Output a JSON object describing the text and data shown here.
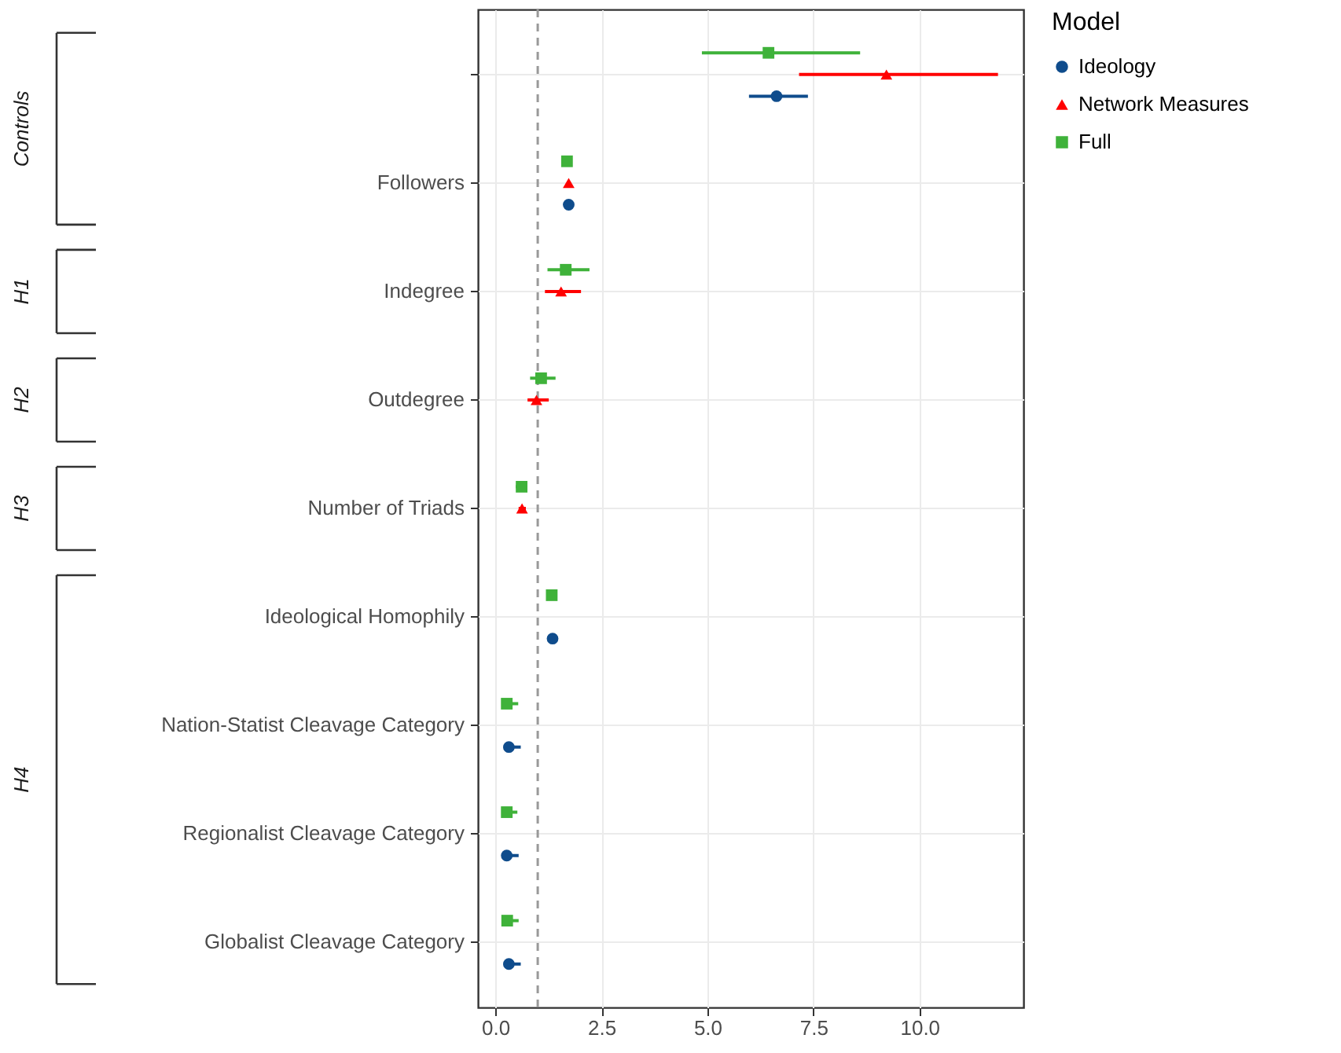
{
  "chart_data": {
    "type": "scatter",
    "orientation": "horizontal",
    "categories": [
      null,
      "Followers",
      "Indegree",
      "Outdegree",
      "Number of Triads",
      "Ideological Homophily",
      "Nation-Statist Cleavage Category",
      "Regionalist Cleavage Category",
      "Globalist Cleavage Category"
    ],
    "series": [
      {
        "name": "Ideology",
        "color": "#0f4c8c",
        "marker": "circle",
        "values": [
          6.63,
          1.73,
          null,
          null,
          null,
          1.35,
          0.32,
          0.27,
          0.32
        ],
        "errors": [
          [
            5.98,
            7.37
          ],
          null,
          null,
          null,
          null,
          null,
          [
            0.2,
            0.6
          ],
          [
            0.16,
            0.55
          ],
          [
            0.2,
            0.6
          ]
        ]
      },
      {
        "name": "Network Measures",
        "color": "#ff0000",
        "marker": "triangle",
        "values": [
          9.22,
          1.73,
          1.55,
          0.97,
          0.63,
          null,
          null,
          null,
          null
        ],
        "errors": [
          [
            7.16,
            11.85
          ],
          null,
          [
            1.17,
            2.02
          ],
          [
            0.76,
            1.26
          ],
          [
            0.55,
            0.72
          ],
          null,
          null,
          null,
          null
        ]
      },
      {
        "name": "Full",
        "color": "#3fb23a",
        "marker": "square",
        "values": [
          6.44,
          1.69,
          1.66,
          1.08,
          0.62,
          1.33,
          0.27,
          0.27,
          0.28
        ],
        "errors": [
          [
            4.87,
            8.6
          ],
          null,
          [
            1.23,
            2.22
          ],
          [
            0.82,
            1.42
          ],
          [
            0.48,
            0.73
          ],
          null,
          [
            0.16,
            0.54
          ],
          [
            0.16,
            0.52
          ],
          [
            0.16,
            0.55
          ]
        ]
      }
    ],
    "xlim": [
      -0.41,
      12.45
    ],
    "xticks": [
      {
        "value": 0,
        "label": "0.0"
      },
      {
        "value": 2.5,
        "label": "2.5"
      },
      {
        "value": 5,
        "label": "5.0"
      },
      {
        "value": 7.5,
        "label": "7.5"
      },
      {
        "value": 10,
        "label": "10.0"
      }
    ],
    "ref_lines": [
      {
        "axis": "x",
        "value": 1,
        "color": "#999999",
        "line_style": "dashed"
      }
    ],
    "legend_title": "Model",
    "legend": "right",
    "grid": true,
    "annotations": [
      "Controls",
      "H1",
      "H2",
      "H3",
      "H4"
    ]
  }
}
